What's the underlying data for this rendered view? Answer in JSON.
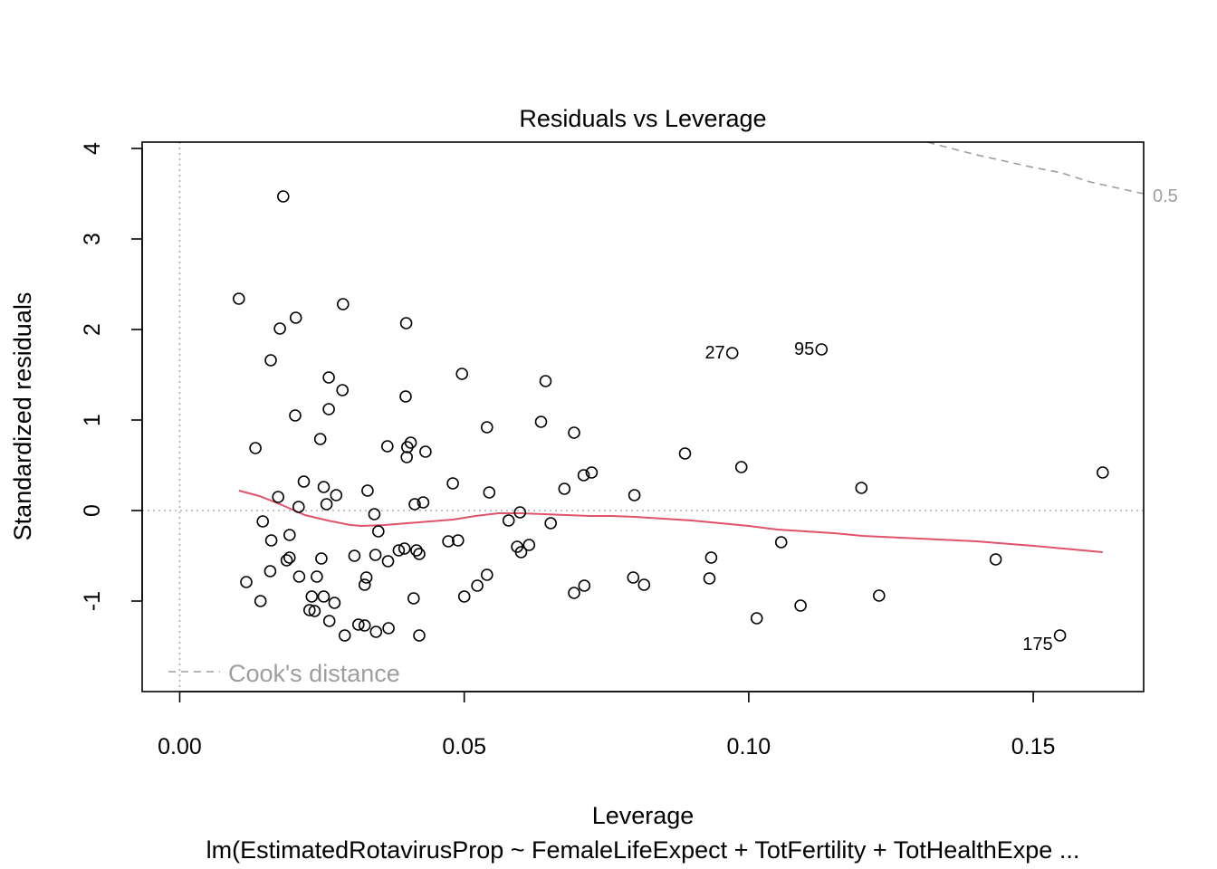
{
  "chart_data": {
    "type": "scatter",
    "title": "Residuals vs Leverage",
    "xlabel": "Leverage",
    "ylabel": "Standardized residuals",
    "subtitle": "lm(EstimatedRotavirusProp ~ FemaleLifeExpect + TotFertility + TotHealthExpe ...",
    "xlim": [
      -0.0066,
      0.1694
    ],
    "ylim": [
      -2.0,
      4.07
    ],
    "x_ticks": [
      {
        "value": 0.0,
        "label": "0.00"
      },
      {
        "value": 0.05,
        "label": "0.05"
      },
      {
        "value": 0.1,
        "label": "0.10"
      },
      {
        "value": 0.15,
        "label": "0.15"
      }
    ],
    "y_ticks": [
      {
        "value": -1,
        "label": "-1"
      },
      {
        "value": 0,
        "label": "0"
      },
      {
        "value": 1,
        "label": "1"
      },
      {
        "value": 2,
        "label": "2"
      },
      {
        "value": 3,
        "label": "3"
      },
      {
        "value": 4,
        "label": "4"
      }
    ],
    "grid": false,
    "points": [
      [
        0.0182,
        3.47
      ],
      [
        0.0104,
        2.34
      ],
      [
        0.0287,
        2.28
      ],
      [
        0.0204,
        2.13
      ],
      [
        0.0176,
        2.01
      ],
      [
        0.0398,
        2.07
      ],
      [
        0.016,
        1.66
      ],
      [
        0.0262,
        1.47
      ],
      [
        0.0286,
        1.33
      ],
      [
        0.0397,
        1.26
      ],
      [
        0.0262,
        1.12
      ],
      [
        0.0203,
        1.05
      ],
      [
        0.0133,
        0.69
      ],
      [
        0.0247,
        0.79
      ],
      [
        0.0365,
        0.71
      ],
      [
        0.04,
        0.7
      ],
      [
        0.0406,
        0.75
      ],
      [
        0.0432,
        0.65
      ],
      [
        0.0399,
        0.59
      ],
      [
        0.0496,
        1.51
      ],
      [
        0.054,
        0.92
      ],
      [
        0.0643,
        1.43
      ],
      [
        0.0635,
        0.98
      ],
      [
        0.0693,
        0.86
      ],
      [
        0.071,
        0.39
      ],
      [
        0.0724,
        0.42
      ],
      [
        0.0676,
        0.24
      ],
      [
        0.048,
        0.3
      ],
      [
        0.0218,
        0.32
      ],
      [
        0.0253,
        0.26
      ],
      [
        0.0275,
        0.17
      ],
      [
        0.033,
        0.22
      ],
      [
        0.0173,
        0.15
      ],
      [
        0.0209,
        0.04
      ],
      [
        0.0258,
        0.07
      ],
      [
        0.0413,
        0.07
      ],
      [
        0.0428,
        0.09
      ],
      [
        0.0544,
        0.2
      ],
      [
        0.0799,
        0.17
      ],
      [
        0.0888,
        0.63
      ],
      [
        0.0987,
        0.48
      ],
      [
        0.1198,
        0.25
      ],
      [
        0.1622,
        0.42
      ],
      [
        0.0342,
        -0.04
      ],
      [
        0.0598,
        -0.02
      ],
      [
        0.0578,
        -0.11
      ],
      [
        0.0652,
        -0.14
      ],
      [
        0.0146,
        -0.12
      ],
      [
        0.0193,
        -0.27
      ],
      [
        0.0161,
        -0.33
      ],
      [
        0.0349,
        -0.23
      ],
      [
        0.0472,
        -0.34
      ],
      [
        0.0489,
        -0.33
      ],
      [
        0.0593,
        -0.4
      ],
      [
        0.06,
        -0.46
      ],
      [
        0.0614,
        -0.38
      ],
      [
        0.0385,
        -0.44
      ],
      [
        0.0395,
        -0.42
      ],
      [
        0.0416,
        -0.44
      ],
      [
        0.0421,
        -0.48
      ],
      [
        0.0307,
        -0.5
      ],
      [
        0.0344,
        -0.49
      ],
      [
        0.0366,
        -0.56
      ],
      [
        0.0193,
        -0.52
      ],
      [
        0.0188,
        -0.55
      ],
      [
        0.0249,
        -0.53
      ],
      [
        0.0934,
        -0.52
      ],
      [
        0.1057,
        -0.35
      ],
      [
        0.1434,
        -0.54
      ],
      [
        0.0117,
        -0.79
      ],
      [
        0.0159,
        -0.67
      ],
      [
        0.021,
        -0.73
      ],
      [
        0.0241,
        -0.73
      ],
      [
        0.0325,
        -0.82
      ],
      [
        0.0328,
        -0.74
      ],
      [
        0.054,
        -0.71
      ],
      [
        0.0523,
        -0.83
      ],
      [
        0.05,
        -0.95
      ],
      [
        0.0411,
        -0.97
      ],
      [
        0.0142,
        -1.0
      ],
      [
        0.0232,
        -0.95
      ],
      [
        0.0253,
        -0.95
      ],
      [
        0.0272,
        -1.02
      ],
      [
        0.0228,
        -1.1
      ],
      [
        0.0237,
        -1.11
      ],
      [
        0.0263,
        -1.22
      ],
      [
        0.0314,
        -1.26
      ],
      [
        0.0325,
        -1.27
      ],
      [
        0.0345,
        -1.34
      ],
      [
        0.0367,
        -1.3
      ],
      [
        0.029,
        -1.38
      ],
      [
        0.0421,
        -1.38
      ],
      [
        0.0693,
        -0.91
      ],
      [
        0.0711,
        -0.83
      ],
      [
        0.0797,
        -0.74
      ],
      [
        0.0816,
        -0.82
      ],
      [
        0.0931,
        -0.75
      ],
      [
        0.1014,
        -1.19
      ],
      [
        0.1091,
        -1.05
      ],
      [
        0.1229,
        -0.94
      ]
    ],
    "labeled_points": [
      {
        "label": "27",
        "x": 0.0971,
        "y": 1.74
      },
      {
        "label": "95",
        "x": 0.1128,
        "y": 1.78
      },
      {
        "label": "175",
        "x": 0.1547,
        "y": -1.38
      }
    ],
    "smooth_line": {
      "color": "#DF536B",
      "points": [
        [
          0.0104,
          0.22
        ],
        [
          0.014,
          0.16
        ],
        [
          0.018,
          0.06
        ],
        [
          0.022,
          -0.05
        ],
        [
          0.026,
          -0.11
        ],
        [
          0.03,
          -0.16
        ],
        [
          0.032,
          -0.17
        ],
        [
          0.036,
          -0.16
        ],
        [
          0.04,
          -0.14
        ],
        [
          0.044,
          -0.12
        ],
        [
          0.048,
          -0.1
        ],
        [
          0.052,
          -0.06
        ],
        [
          0.056,
          -0.03
        ],
        [
          0.06,
          -0.03
        ],
        [
          0.064,
          -0.04
        ],
        [
          0.068,
          -0.05
        ],
        [
          0.072,
          -0.06
        ],
        [
          0.076,
          -0.06
        ],
        [
          0.08,
          -0.07
        ],
        [
          0.085,
          -0.09
        ],
        [
          0.09,
          -0.11
        ],
        [
          0.095,
          -0.14
        ],
        [
          0.1,
          -0.17
        ],
        [
          0.105,
          -0.21
        ],
        [
          0.11,
          -0.23
        ],
        [
          0.115,
          -0.25
        ],
        [
          0.12,
          -0.28
        ],
        [
          0.13,
          -0.31
        ],
        [
          0.14,
          -0.34
        ],
        [
          0.15,
          -0.39
        ],
        [
          0.1622,
          -0.46
        ]
      ]
    },
    "cooks_distance": {
      "level_label": "0.5",
      "color": "#9e9e9e",
      "points": [
        [
          0.1314,
          4.07
        ],
        [
          0.135,
          4.01
        ],
        [
          0.14,
          3.93
        ],
        [
          0.145,
          3.86
        ],
        [
          0.15,
          3.79
        ],
        [
          0.155,
          3.73
        ],
        [
          0.16,
          3.63
        ],
        [
          0.165,
          3.56
        ],
        [
          0.1694,
          3.5
        ]
      ]
    },
    "legend": {
      "label": "Cook's distance",
      "placement": "bottom-left"
    }
  }
}
